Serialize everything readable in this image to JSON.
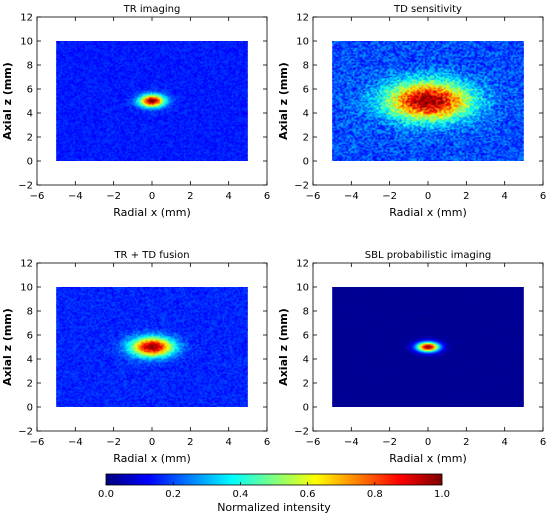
{
  "chart_data": [
    {
      "type": "heatmap",
      "title": "TR imaging",
      "xlabel": "Radial x (mm)",
      "ylabel": "Axial z (mm)",
      "xlim": [
        -6,
        6
      ],
      "ylim": [
        -2,
        12
      ],
      "xticks": [
        "−6",
        "−4",
        "−2",
        "0",
        "2",
        "4",
        "6"
      ],
      "yticks": [
        "−2",
        "0",
        "2",
        "4",
        "6",
        "8",
        "10",
        "12"
      ],
      "image_extent": {
        "x": [
          -5,
          5
        ],
        "z": [
          0,
          10
        ]
      },
      "spot": {
        "x": 0,
        "z": 5,
        "sigma_x": 0.45,
        "sigma_z": 0.35
      },
      "background_level": 0.15,
      "noise": 0.06
    },
    {
      "type": "heatmap",
      "title": "TD sensitivity",
      "xlabel": "Radial x (mm)",
      "ylabel": "Axial z (mm)",
      "xlim": [
        -6,
        6
      ],
      "ylim": [
        -2,
        12
      ],
      "xticks": [
        "−6",
        "−4",
        "−2",
        "0",
        "2",
        "4",
        "6"
      ],
      "yticks": [
        "−2",
        "0",
        "2",
        "4",
        "6",
        "8",
        "10",
        "12"
      ],
      "image_extent": {
        "x": [
          -5,
          5
        ],
        "z": [
          0,
          10
        ]
      },
      "spot": {
        "x": 0,
        "z": 5,
        "sigma_x": 1.5,
        "sigma_z": 1.1
      },
      "background_level": 0.2,
      "noise": 0.14
    },
    {
      "type": "heatmap",
      "title": "TR + TD fusion",
      "xlabel": "Radial x (mm)",
      "ylabel": "Axial z (mm)",
      "xlim": [
        -6,
        6
      ],
      "ylim": [
        -2,
        12
      ],
      "xticks": [
        "−6",
        "−4",
        "−2",
        "0",
        "2",
        "4",
        "6"
      ],
      "yticks": [
        "−2",
        "0",
        "2",
        "4",
        "6",
        "8",
        "10",
        "12"
      ],
      "image_extent": {
        "x": [
          -5,
          5
        ],
        "z": [
          0,
          10
        ]
      },
      "spot": {
        "x": 0,
        "z": 5,
        "sigma_x": 0.75,
        "sigma_z": 0.55
      },
      "background_level": 0.16,
      "noise": 0.07
    },
    {
      "type": "heatmap",
      "title": "SBL probabilistic imaging",
      "xlabel": "Radial x (mm)",
      "ylabel": "Axial z (mm)",
      "xlim": [
        -6,
        6
      ],
      "ylim": [
        -2,
        12
      ],
      "xticks": [
        "−6",
        "−4",
        "−2",
        "0",
        "2",
        "4",
        "6"
      ],
      "yticks": [
        "−2",
        "0",
        "2",
        "4",
        "6",
        "8",
        "10",
        "12"
      ],
      "image_extent": {
        "x": [
          -5,
          5
        ],
        "z": [
          0,
          10
        ]
      },
      "spot": {
        "x": 0,
        "z": 5,
        "sigma_x": 0.4,
        "sigma_z": 0.28
      },
      "background_level": 0.02,
      "noise": 0.01
    }
  ],
  "colorbar": {
    "label": "Normalized intensity",
    "ticks": [
      "0.0",
      "0.2",
      "0.4",
      "0.6",
      "0.8",
      "1.0"
    ],
    "colormap": "jet",
    "range": [
      0,
      1
    ]
  }
}
